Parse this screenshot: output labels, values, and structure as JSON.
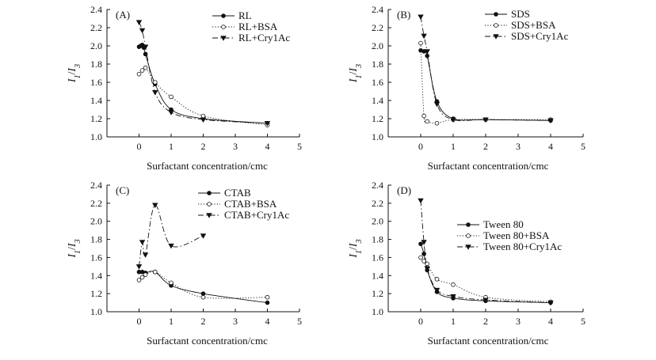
{
  "chart_data": [
    {
      "type": "line",
      "panel_label": "(A)",
      "xlabel": "Surfactant concentration/cmc",
      "ylabel_main": "I",
      "ylabel_sub1": "1",
      "ylabel_sep": "/",
      "ylabel_sub3": "3",
      "xlim": [
        -1,
        5
      ],
      "ylim": [
        1.0,
        2.4
      ],
      "xticks": [
        "0",
        "1",
        "2",
        "3",
        "4",
        "5"
      ],
      "yticks": [
        "1.0",
        "1.2",
        "1.4",
        "1.6",
        "1.8",
        "2.0",
        "2.2",
        "2.4"
      ],
      "legend_position": "top-right",
      "series": [
        {
          "name": "RL",
          "marker": "filled-circle",
          "style": "solid",
          "x": [
            0,
            0.05,
            0.1,
            0.15,
            0.2,
            0.5,
            1,
            2,
            4
          ],
          "y": [
            1.99,
            2.0,
            2.01,
            1.98,
            1.91,
            1.58,
            1.3,
            1.2,
            1.15
          ]
        },
        {
          "name": "RL+BSA",
          "marker": "open-circle",
          "style": "dotted",
          "x": [
            0,
            0.1,
            0.2,
            0.5,
            1,
            2,
            4
          ],
          "y": [
            1.69,
            1.73,
            1.76,
            1.6,
            1.44,
            1.23,
            1.13
          ]
        },
        {
          "name": "RL+Cry1Ac",
          "marker": "filled-triangle-down",
          "style": "dashdot",
          "x": [
            0,
            0.1,
            0.2,
            0.5,
            1,
            2,
            4
          ],
          "y": [
            2.26,
            2.17,
            1.99,
            1.49,
            1.27,
            1.19,
            1.15
          ]
        }
      ]
    },
    {
      "type": "line",
      "panel_label": "(B)",
      "xlabel": "Surfactant concentration/cmc",
      "ylabel_main": "I",
      "ylabel_sub1": "1",
      "ylabel_sep": "/",
      "ylabel_sub3": "3",
      "xlim": [
        -1,
        5
      ],
      "ylim": [
        1.0,
        2.4
      ],
      "xticks": [
        "0",
        "1",
        "2",
        "3",
        "4",
        "5"
      ],
      "yticks": [
        "1.0",
        "1.2",
        "1.4",
        "1.6",
        "1.8",
        "2.0",
        "2.2",
        "2.4"
      ],
      "legend_position": "top-right",
      "series": [
        {
          "name": "SDS",
          "marker": "filled-circle",
          "style": "solid",
          "x": [
            0,
            0.1,
            0.2,
            0.5,
            1,
            2,
            4
          ],
          "y": [
            1.95,
            1.94,
            1.89,
            1.39,
            1.2,
            1.19,
            1.18
          ]
        },
        {
          "name": "SDS+BSA",
          "marker": "open-circle",
          "style": "dotted",
          "x": [
            0,
            0.1,
            0.2,
            0.5,
            1,
            2,
            4
          ],
          "y": [
            2.03,
            1.23,
            1.17,
            1.15,
            1.19,
            1.19,
            1.19
          ]
        },
        {
          "name": "SDS+Cry1Ac",
          "marker": "filled-triangle-down",
          "style": "dashdot",
          "x": [
            0,
            0.1,
            0.2,
            0.5,
            1,
            2,
            4
          ],
          "y": [
            2.32,
            2.11,
            1.94,
            1.36,
            1.19,
            1.19,
            1.18
          ]
        }
      ]
    },
    {
      "type": "line",
      "panel_label": "(C)",
      "xlabel": "Surfactant concentration/cmc",
      "ylabel_main": "I",
      "ylabel_sub1": "1",
      "ylabel_sep": "/",
      "ylabel_sub3": "3",
      "xlim": [
        -1,
        5
      ],
      "ylim": [
        1.0,
        2.4
      ],
      "xticks": [
        "0",
        "1",
        "2",
        "3",
        "4",
        "5"
      ],
      "yticks": [
        "1.0",
        "1.2",
        "1.4",
        "1.6",
        "1.8",
        "2.0",
        "2.2",
        "2.4"
      ],
      "legend_position": "top-right",
      "series": [
        {
          "name": "CTAB",
          "marker": "filled-circle",
          "style": "solid",
          "x": [
            0,
            0.1,
            0.2,
            0.5,
            1,
            2,
            4
          ],
          "y": [
            1.44,
            1.44,
            1.43,
            1.44,
            1.29,
            1.2,
            1.1
          ]
        },
        {
          "name": "CTAB+BSA",
          "marker": "open-circle",
          "style": "dotted",
          "x": [
            0,
            0.1,
            0.2,
            0.5,
            1,
            2,
            4
          ],
          "y": [
            1.35,
            1.38,
            1.41,
            1.44,
            1.32,
            1.16,
            1.16
          ]
        },
        {
          "name": "CTAB+Cry1Ac",
          "marker": "filled-triangle-down",
          "style": "dashdot",
          "x": [
            0,
            0.1,
            0.2,
            0.5,
            1,
            2
          ],
          "y": [
            1.5,
            1.77,
            1.63,
            2.18,
            1.73,
            1.84
          ]
        }
      ]
    },
    {
      "type": "line",
      "panel_label": "(D)",
      "xlabel": "Surfactant concentration/cmc",
      "ylabel_main": "I",
      "ylabel_sub1": "1",
      "ylabel_sep": "/",
      "ylabel_sub3": "3",
      "xlim": [
        -1,
        5
      ],
      "ylim": [
        1.0,
        2.4
      ],
      "xticks": [
        "0",
        "1",
        "2",
        "3",
        "4",
        "5"
      ],
      "yticks": [
        "1.0",
        "1.2",
        "1.4",
        "1.6",
        "1.8",
        "2.0",
        "2.2",
        "2.4"
      ],
      "legend_position": "middle-right",
      "series": [
        {
          "name": "Tween 80",
          "marker": "filled-circle",
          "style": "solid",
          "x": [
            0,
            0.1,
            0.2,
            0.5,
            1,
            2,
            4
          ],
          "y": [
            1.75,
            1.64,
            1.46,
            1.22,
            1.15,
            1.12,
            1.1
          ]
        },
        {
          "name": "Tween 80+BSA",
          "marker": "open-circle",
          "style": "dotted",
          "x": [
            0,
            0.1,
            0.2,
            0.5,
            1,
            2,
            4
          ],
          "y": [
            1.6,
            1.56,
            1.53,
            1.36,
            1.3,
            1.16,
            1.11
          ]
        },
        {
          "name": "Tween 80+Cry1Ac",
          "marker": "filled-triangle-down",
          "style": "dashdot",
          "x": [
            0,
            0.1,
            0.2,
            0.5,
            1,
            2,
            4
          ],
          "y": [
            2.23,
            1.77,
            1.48,
            1.24,
            1.17,
            1.13,
            1.1
          ]
        }
      ]
    }
  ]
}
